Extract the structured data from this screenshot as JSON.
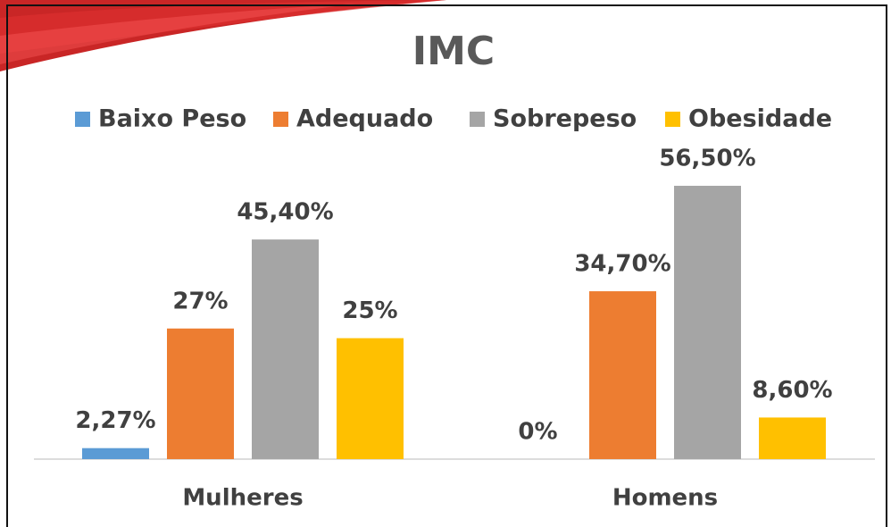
{
  "chart_data": {
    "type": "bar",
    "title": "IMC",
    "categories": [
      "Mulheres",
      "Homens"
    ],
    "series": [
      {
        "name": "Baixo Peso",
        "color": "#5b9bd5",
        "values": [
          2.27,
          0
        ],
        "value_labels": [
          "2,27%",
          "0%"
        ]
      },
      {
        "name": "Adequado",
        "color": "#ed7d31",
        "values": [
          27,
          34.7
        ],
        "value_labels": [
          "27%",
          "34,70%"
        ]
      },
      {
        "name": "Sobrepeso",
        "color": "#a5a5a5",
        "values": [
          45.4,
          56.5
        ],
        "value_labels": [
          "45,40%",
          "56,50%"
        ]
      },
      {
        "name": "Obesidade",
        "color": "#ffc000",
        "values": [
          25,
          8.6
        ],
        "value_labels": [
          "25%",
          "8,60%"
        ]
      }
    ],
    "legend": "top"
  }
}
